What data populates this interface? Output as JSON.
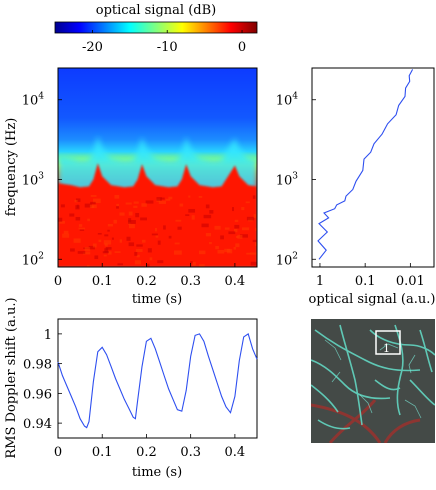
{
  "colorbar": {
    "title": "optical signal (dB)",
    "ticks": [
      -20,
      -10,
      0
    ],
    "range": [
      -25,
      2
    ]
  },
  "chart_data": [
    {
      "type": "heatmap",
      "title": "",
      "xlabel": "time (s)",
      "ylabel": "frequency (Hz)",
      "xlim": [
        0,
        0.45
      ],
      "xticks": [
        "0",
        "0.1",
        "0.2",
        "0.3",
        "0.4"
      ],
      "ylim": [
        80,
        25000
      ],
      "yscale": "log",
      "yticks": [
        {
          "base": "10",
          "exp": "2",
          "value": 100
        },
        {
          "base": "10",
          "exp": "3",
          "value": 1000
        },
        {
          "base": "10",
          "exp": "4",
          "value": 10000
        }
      ],
      "cutoff_frequency_hz": [
        [
          0.0,
          900
        ],
        [
          0.03,
          850
        ],
        [
          0.05,
          800
        ],
        [
          0.07,
          820
        ],
        [
          0.08,
          1000
        ],
        [
          0.09,
          1600
        ],
        [
          0.1,
          1100
        ],
        [
          0.12,
          850
        ],
        [
          0.15,
          800
        ],
        [
          0.17,
          820
        ],
        [
          0.18,
          1000
        ],
        [
          0.19,
          1550
        ],
        [
          0.2,
          1100
        ],
        [
          0.22,
          850
        ],
        [
          0.25,
          800
        ],
        [
          0.27,
          820
        ],
        [
          0.28,
          1000
        ],
        [
          0.29,
          1550
        ],
        [
          0.3,
          1100
        ],
        [
          0.32,
          850
        ],
        [
          0.35,
          800
        ],
        [
          0.37,
          820
        ],
        [
          0.38,
          1000
        ],
        [
          0.4,
          1500
        ],
        [
          0.41,
          1100
        ],
        [
          0.43,
          850
        ],
        [
          0.45,
          820
        ]
      ],
      "grid": false
    },
    {
      "type": "line",
      "title": "",
      "xlabel": "optical signal (a.u.)",
      "ylabel": "",
      "xscale": "log",
      "xaxis_reversed": true,
      "xlim": [
        1.5,
        0.003
      ],
      "xticks": [
        "1",
        "0.1",
        "0.01"
      ],
      "ylim": [
        80,
        25000
      ],
      "yscale": "log",
      "yticks": [
        {
          "base": "10",
          "exp": "2",
          "value": 100
        },
        {
          "base": "10",
          "exp": "3",
          "value": 1000
        },
        {
          "base": "10",
          "exp": "4",
          "value": 10000
        }
      ],
      "series": [
        {
          "x": [
            0.9,
            0.85,
            0.95,
            0.8,
            0.9,
            0.75,
            0.7,
            0.55,
            0.4,
            0.3,
            0.25,
            0.2,
            0.15,
            0.12,
            0.1,
            0.08,
            0.06,
            0.045,
            0.03,
            0.022,
            0.017,
            0.014,
            0.012,
            0.011,
            0.01,
            0.0095
          ],
          "y": [
            100,
            130,
            170,
            220,
            280,
            330,
            380,
            430,
            480,
            540,
            620,
            750,
            950,
            1300,
            1800,
            2200,
            2800,
            3700,
            5000,
            6500,
            8500,
            11000,
            14000,
            17000,
            20000,
            24000
          ]
        }
      ],
      "grid": false
    },
    {
      "type": "line",
      "title": "",
      "xlabel": "time (s)",
      "ylabel": "RMS Doppler shift (a.u.)",
      "xlim": [
        0,
        0.45
      ],
      "xticks": [
        "0",
        "0.1",
        "0.2",
        "0.3",
        "0.4"
      ],
      "ylim": [
        0.93,
        1.01
      ],
      "yticks": [
        "0.94",
        "0.96",
        "0.98",
        "1"
      ],
      "series": [
        {
          "x": [
            0,
            0.01,
            0.02,
            0.03,
            0.04,
            0.05,
            0.06,
            0.065,
            0.07,
            0.08,
            0.09,
            0.1,
            0.11,
            0.12,
            0.13,
            0.14,
            0.15,
            0.16,
            0.17,
            0.175,
            0.18,
            0.19,
            0.2,
            0.21,
            0.22,
            0.23,
            0.24,
            0.25,
            0.26,
            0.27,
            0.28,
            0.29,
            0.3,
            0.31,
            0.32,
            0.33,
            0.34,
            0.35,
            0.36,
            0.37,
            0.38,
            0.39,
            0.4,
            0.41,
            0.42,
            0.43,
            0.44,
            0.45
          ],
          "y": [
            0.981,
            0.972,
            0.965,
            0.958,
            0.951,
            0.943,
            0.938,
            0.937,
            0.941,
            0.968,
            0.988,
            0.991,
            0.986,
            0.978,
            0.97,
            0.963,
            0.956,
            0.95,
            0.944,
            0.943,
            0.955,
            0.978,
            0.995,
            0.997,
            0.99,
            0.981,
            0.972,
            0.963,
            0.956,
            0.949,
            0.948,
            0.962,
            0.985,
            0.999,
            1.0,
            0.995,
            0.985,
            0.976,
            0.967,
            0.958,
            0.951,
            0.947,
            0.958,
            0.982,
            0.998,
            1.0,
            0.99,
            0.983
          ]
        }
      ],
      "grid": false
    }
  ],
  "image_panel": {
    "roi_label": "1"
  }
}
